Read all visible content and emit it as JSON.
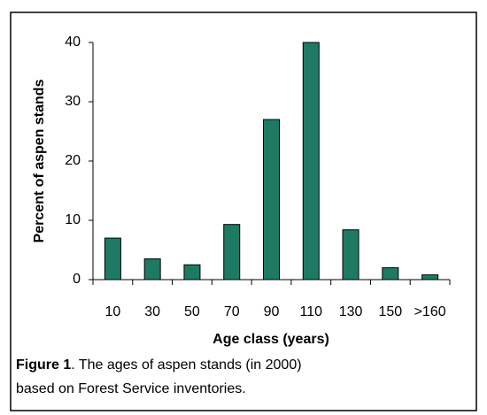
{
  "chart_data": {
    "type": "bar",
    "y_label": "Percent of aspen stands",
    "x_label": "Age class (years)",
    "categories": [
      "10",
      "30",
      "50",
      "70",
      "90",
      "110",
      "130",
      "150",
      ">160"
    ],
    "values": [
      7,
      3.5,
      2.5,
      9.3,
      27,
      40,
      8.4,
      2,
      0.8
    ],
    "color": "#1f7a63",
    "ylim": [
      0,
      40
    ],
    "yticks": [
      0,
      10,
      20,
      30,
      40
    ],
    "grid": false
  },
  "caption": {
    "label": "Figure 1",
    "lines": [
      ". The ages of aspen stands (in 2000)",
      "based on Forest Service inventories."
    ]
  }
}
